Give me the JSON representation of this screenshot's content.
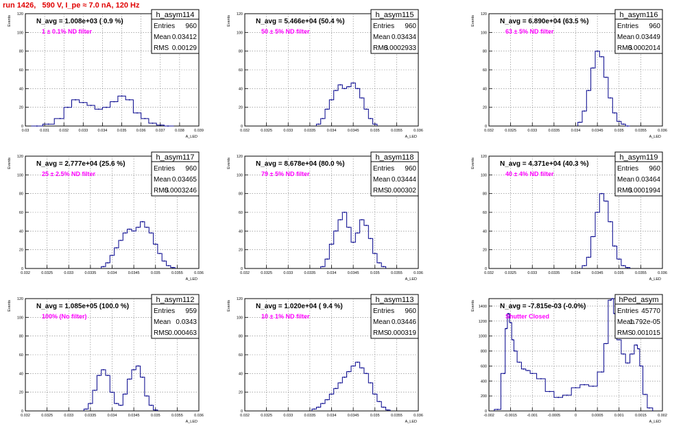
{
  "title": "run 1426,   590 V, I_pe ≈ 7.0 nA, 120 Hz",
  "chart_data": [
    {
      "type": "histogram",
      "name": "h_asym114",
      "n_avg": "N_avg = 1.008e+03 ( 0.9 %)",
      "filter": "1 ± 0.1% ND filter",
      "stats": [
        {
          "label": "Entries",
          "value": "960"
        },
        {
          "label": "Mean",
          "value": "0.03412"
        },
        {
          "label": "RMS",
          "value": "0.00129"
        }
      ],
      "ylabel": "Events",
      "xlabel": "A_LED",
      "xlim": [
        0.03,
        0.039
      ],
      "ylim": [
        0,
        120
      ],
      "xticks": [
        "0.03",
        "0.031",
        "0.032",
        "0.033",
        "0.034",
        "0.035",
        "0.036",
        "0.037",
        "0.038",
        "0.039"
      ],
      "yticks": [
        "0",
        "20",
        "40",
        "60",
        "80",
        "100",
        "120"
      ],
      "x": [
        0.0306,
        0.0312,
        0.0318,
        0.0322,
        0.0326,
        0.033,
        0.0334,
        0.0338,
        0.0342,
        0.0346,
        0.035,
        0.0354,
        0.0358,
        0.0362,
        0.0366,
        0.037,
        0.0374
      ],
      "y": [
        0,
        2,
        8,
        20,
        28,
        25,
        22,
        18,
        20,
        26,
        32,
        28,
        14,
        8,
        3,
        1,
        0
      ]
    },
    {
      "type": "histogram",
      "name": "h_asym115",
      "n_avg": "N_avg = 5.466e+04 (50.4 %)",
      "filter": "50 ± 5% ND filter",
      "stats": [
        {
          "label": "Entries",
          "value": "960"
        },
        {
          "label": "Mean",
          "value": "0.03434"
        },
        {
          "label": "RMS",
          "value": "0.0002933"
        }
      ],
      "ylabel": "Events",
      "xlabel": "A_LED",
      "xlim": [
        0.032,
        0.036
      ],
      "ylim": [
        0,
        120
      ],
      "xticks": [
        "0.032",
        "0.0325",
        "0.033",
        "0.0335",
        "0.034",
        "0.0345",
        "0.035",
        "0.0355",
        "0.036"
      ],
      "yticks": [
        "0",
        "20",
        "40",
        "60",
        "80",
        "100",
        "120"
      ],
      "x": [
        0.0337,
        0.0338,
        0.0339,
        0.034,
        0.0341,
        0.0342,
        0.0343,
        0.0344,
        0.0345,
        0.0346,
        0.0347,
        0.0348,
        0.0349,
        0.035
      ],
      "y": [
        2,
        8,
        18,
        28,
        38,
        44,
        40,
        42,
        46,
        40,
        30,
        18,
        8,
        2
      ]
    },
    {
      "type": "histogram",
      "name": "h_asym116",
      "n_avg": "N_avg = 6.890e+04 (63.5 %)",
      "filter": "63 ± 5% ND filter",
      "stats": [
        {
          "label": "Entries",
          "value": "960"
        },
        {
          "label": "Mean",
          "value": "0.03449"
        },
        {
          "label": "RMS",
          "value": "0.0002014"
        }
      ],
      "ylabel": "Events",
      "xlabel": "A_LED",
      "xlim": [
        0.032,
        0.036
      ],
      "ylim": [
        0,
        120
      ],
      "xticks": [
        "0.032",
        "0.0325",
        "0.033",
        "0.0335",
        "0.034",
        "0.0345",
        "0.035",
        "0.0355",
        "0.036"
      ],
      "yticks": [
        "0",
        "20",
        "40",
        "60",
        "80",
        "100",
        "120"
      ],
      "x": [
        0.0341,
        0.0342,
        0.0343,
        0.0344,
        0.0345,
        0.0346,
        0.0347,
        0.0348,
        0.0349,
        0.035,
        0.0351,
        0.0352
      ],
      "y": [
        4,
        16,
        38,
        62,
        80,
        74,
        52,
        30,
        14,
        5,
        2,
        0
      ]
    },
    {
      "type": "histogram",
      "name": "h_asym117",
      "n_avg": "N_avg = 2.777e+04 (25.6 %)",
      "filter": "25 ± 2.5% ND filter",
      "stats": [
        {
          "label": "Entries",
          "value": "960"
        },
        {
          "label": "Mean",
          "value": "0.03465"
        },
        {
          "label": "RMS",
          "value": "0.0003246"
        }
      ],
      "ylabel": "Events",
      "xlabel": "A_LED",
      "xlim": [
        0.032,
        0.036
      ],
      "ylim": [
        0,
        120
      ],
      "xticks": [
        "0.032",
        "0.0325",
        "0.033",
        "0.0335",
        "0.034",
        "0.0345",
        "0.035",
        "0.0355",
        "0.036"
      ],
      "yticks": [
        "0",
        "20",
        "40",
        "60",
        "80",
        "100",
        "120"
      ],
      "x": [
        0.0338,
        0.0339,
        0.034,
        0.0341,
        0.0342,
        0.0343,
        0.0344,
        0.0345,
        0.0346,
        0.0347,
        0.0348,
        0.0349,
        0.035,
        0.0351,
        0.0352,
        0.0353,
        0.0354
      ],
      "y": [
        2,
        6,
        14,
        22,
        30,
        38,
        42,
        40,
        44,
        50,
        44,
        38,
        26,
        16,
        8,
        3,
        1
      ]
    },
    {
      "type": "histogram",
      "name": "h_asym118",
      "n_avg": "N_avg = 8.678e+04 (80.0 %)",
      "filter": "79 ± 5% ND filter",
      "stats": [
        {
          "label": "Entries",
          "value": "960"
        },
        {
          "label": "Mean",
          "value": "0.03444"
        },
        {
          "label": "RMS",
          "value": "0.000302"
        }
      ],
      "ylabel": "Events",
      "xlabel": "A_LED",
      "xlim": [
        0.032,
        0.036
      ],
      "ylim": [
        0,
        120
      ],
      "xticks": [
        "0.032",
        "0.0325",
        "0.033",
        "0.0335",
        "0.034",
        "0.0345",
        "0.035",
        "0.0355",
        "0.036"
      ],
      "yticks": [
        "0",
        "20",
        "40",
        "60",
        "80",
        "100",
        "120"
      ],
      "x": [
        0.0338,
        0.0339,
        0.034,
        0.0341,
        0.0342,
        0.0343,
        0.0344,
        0.0345,
        0.0346,
        0.0347,
        0.0348,
        0.0349,
        0.035,
        0.0351,
        0.0352
      ],
      "y": [
        2,
        10,
        26,
        40,
        52,
        60,
        44,
        28,
        38,
        52,
        46,
        32,
        16,
        6,
        2
      ]
    },
    {
      "type": "histogram",
      "name": "h_asym119",
      "n_avg": "N_avg = 4.371e+04 (40.3 %)",
      "filter": "40 ± 4% ND filter",
      "stats": [
        {
          "label": "Entries",
          "value": "960"
        },
        {
          "label": "Mean",
          "value": "0.03464"
        },
        {
          "label": "RMS",
          "value": "0.0001994"
        }
      ],
      "ylabel": "Events",
      "xlabel": "A_LED",
      "xlim": [
        0.032,
        0.036
      ],
      "ylim": [
        0,
        120
      ],
      "xticks": [
        "0.032",
        "0.0325",
        "0.033",
        "0.0335",
        "0.034",
        "0.0345",
        "0.035",
        "0.0355",
        "0.036"
      ],
      "yticks": [
        "0",
        "20",
        "40",
        "60",
        "80",
        "100",
        "120"
      ],
      "x": [
        0.0342,
        0.0343,
        0.0344,
        0.0345,
        0.0346,
        0.0347,
        0.0348,
        0.0349,
        0.035,
        0.0351,
        0.0352
      ],
      "y": [
        3,
        12,
        34,
        60,
        80,
        72,
        50,
        24,
        10,
        3,
        1
      ]
    },
    {
      "type": "histogram",
      "name": "h_asym112",
      "n_avg": "N_avg = 1.085e+05 (100.0 %)",
      "filter": "100% (No filter)",
      "stats": [
        {
          "label": "Entries",
          "value": "959"
        },
        {
          "label": "Mean",
          "value": "0.0343"
        },
        {
          "label": "RMS",
          "value": "0.000463"
        }
      ],
      "ylabel": "Events",
      "xlabel": "A_LED",
      "xlim": [
        0.032,
        0.036
      ],
      "ylim": [
        0,
        120
      ],
      "xticks": [
        "0.032",
        "0.0325",
        "0.033",
        "0.0335",
        "0.034",
        "0.0345",
        "0.035",
        "0.0355",
        "0.036"
      ],
      "yticks": [
        "0",
        "20",
        "40",
        "60",
        "80",
        "100",
        "120"
      ],
      "x": [
        0.0334,
        0.0335,
        0.0336,
        0.0337,
        0.0338,
        0.0339,
        0.034,
        0.0341,
        0.0342,
        0.0343,
        0.0344,
        0.0345,
        0.0346,
        0.0347,
        0.0348,
        0.0349,
        0.035
      ],
      "y": [
        2,
        8,
        22,
        38,
        44,
        38,
        20,
        8,
        6,
        18,
        34,
        44,
        48,
        36,
        16,
        6,
        1
      ]
    },
    {
      "type": "histogram",
      "name": "h_asym113",
      "n_avg": "N_avg = 1.020e+04 ( 9.4 %)",
      "filter": "10 ± 1% ND filter",
      "stats": [
        {
          "label": "Entries",
          "value": "960"
        },
        {
          "label": "Mean",
          "value": "0.03446"
        },
        {
          "label": "RMS",
          "value": "0.000319"
        }
      ],
      "ylabel": "Events",
      "xlabel": "A_LED",
      "xlim": [
        0.032,
        0.036
      ],
      "ylim": [
        0,
        120
      ],
      "xticks": [
        "0.032",
        "0.0325",
        "0.033",
        "0.0335",
        "0.034",
        "0.0345",
        "0.035",
        "0.0355",
        "0.036"
      ],
      "yticks": [
        "0",
        "20",
        "40",
        "60",
        "80",
        "100",
        "120"
      ],
      "x": [
        0.0336,
        0.0337,
        0.0338,
        0.0339,
        0.034,
        0.0341,
        0.0342,
        0.0343,
        0.0344,
        0.0345,
        0.0346,
        0.0347,
        0.0348,
        0.0349,
        0.035,
        0.0351,
        0.0352,
        0.0353
      ],
      "y": [
        2,
        4,
        8,
        12,
        18,
        24,
        30,
        36,
        42,
        48,
        52,
        46,
        40,
        30,
        18,
        10,
        4,
        1
      ]
    },
    {
      "type": "histogram",
      "name": "hPed_asym",
      "n_avg": "N_avg = -7.815e-03 (-0.0%)",
      "filter": "Shutter Closed",
      "stats": [
        {
          "label": "Entries",
          "value": "45770"
        },
        {
          "label": "Mean",
          "value": "1.792e-05"
        },
        {
          "label": "RMS",
          "value": "0.001015"
        }
      ],
      "ylabel": "Events",
      "xlabel": "A_LED",
      "xlim": [
        -0.002,
        0.002
      ],
      "ylim": [
        0,
        1500
      ],
      "xticks": [
        "-0.002",
        "-0.0015",
        "-0.001",
        "-0.0005",
        "0",
        "0.0005",
        "0.001",
        "0.0015",
        "0.002"
      ],
      "yticks": [
        "0",
        "200",
        "400",
        "600",
        "800",
        "1000",
        "1200",
        "1400"
      ],
      "x": [
        -0.0018,
        -0.00165,
        -0.0016,
        -0.00155,
        -0.0015,
        -0.00145,
        -0.0014,
        -0.0013,
        -0.0012,
        -0.0011,
        -0.001,
        -0.0008,
        -0.0006,
        -0.0004,
        -0.0002,
        0,
        0.0002,
        0.0004,
        0.0006,
        0.0007,
        0.0008,
        0.00085,
        0.0009,
        0.001,
        0.0011,
        0.0012,
        0.0013,
        0.0014,
        0.00145,
        0.0015,
        0.0016,
        0.0017
      ],
      "y": [
        20,
        500,
        1100,
        1300,
        1180,
        950,
        800,
        650,
        560,
        540,
        500,
        430,
        260,
        180,
        210,
        310,
        350,
        330,
        520,
        900,
        1480,
        1500,
        1300,
        950,
        760,
        640,
        760,
        880,
        830,
        600,
        220,
        40
      ]
    }
  ]
}
